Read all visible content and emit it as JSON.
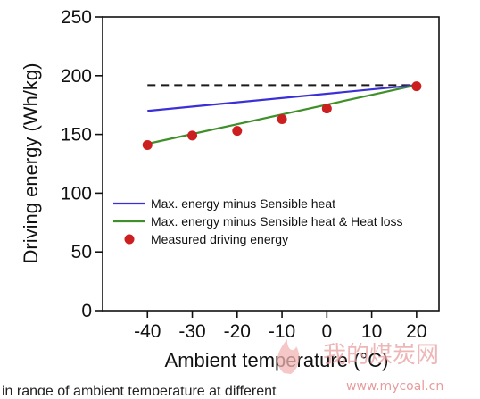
{
  "chart_data": {
    "type": "line",
    "xlabel": "Ambient temperature (°C)",
    "ylabel": "Driving energy (Wh/kg)",
    "xlim": [
      -50,
      25
    ],
    "ylim": [
      0,
      250
    ],
    "xticks": [
      -40,
      -30,
      -20,
      -10,
      0,
      10,
      20
    ],
    "yticks": [
      0,
      50,
      100,
      150,
      200,
      250
    ],
    "grid": false,
    "legend_position": "lower-left",
    "reference_line": {
      "y": 192,
      "x_range": [
        -40,
        20
      ],
      "style": "dashed",
      "color": "#1a1a1a"
    },
    "series": [
      {
        "name": "Max. energy minus Sensible heat",
        "kind": "line",
        "color": "#3b2fd6",
        "x": [
          -40,
          20
        ],
        "y": [
          170,
          192
        ]
      },
      {
        "name": "Max. energy minus Sensible heat & Heat loss",
        "kind": "line",
        "color": "#3f8f2a",
        "x": [
          -40,
          20
        ],
        "y": [
          142,
          192
        ]
      },
      {
        "name": "Measured driving energy",
        "kind": "scatter",
        "color": "#cc1f1f",
        "x": [
          -40,
          -30,
          -20,
          -10,
          0,
          20
        ],
        "y": [
          141,
          149,
          153,
          163,
          172,
          191
        ]
      }
    ]
  },
  "watermark": {
    "text": "我的煤炭网",
    "url": "www.mycoal.cn",
    "color": "#e8a0a0"
  },
  "caption_fragment": "in range of ambient temperature at different"
}
